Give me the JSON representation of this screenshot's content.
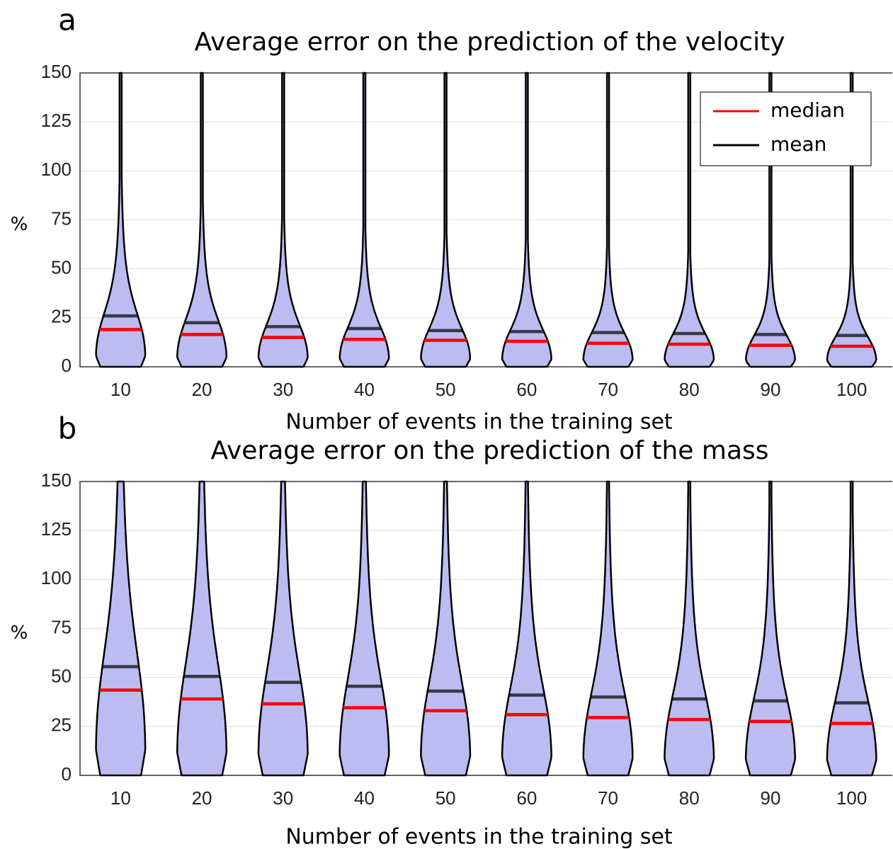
{
  "chart_data": [
    {
      "type": "violin",
      "panel_label": "a",
      "title": "Average error on the prediction of the velocity",
      "xlabel": "Number of events in the training set",
      "ylabel": "%",
      "x": [
        10,
        20,
        30,
        40,
        50,
        60,
        70,
        80,
        90,
        100
      ],
      "xlim": [
        5,
        105
      ],
      "xticks": [
        10,
        20,
        30,
        40,
        50,
        60,
        70,
        80,
        90,
        100
      ],
      "ylim": [
        0,
        150
      ],
      "yticks": [
        0,
        25,
        50,
        75,
        100,
        125,
        150
      ],
      "grid": true,
      "violin_color": "#bcbcf2",
      "legend": "upper right",
      "series": [
        {
          "name": "median",
          "color": "#ff0000",
          "values": [
            19,
            16.5,
            15,
            14,
            13.5,
            13,
            12,
            11.5,
            11,
            10.5
          ]
        },
        {
          "name": "mean",
          "color": "#000000",
          "values": [
            26,
            22.5,
            20.5,
            19.5,
            18.5,
            18,
            17.5,
            17,
            16.5,
            16
          ]
        }
      ]
    },
    {
      "type": "violin",
      "panel_label": "b",
      "title": "Average error on the prediction of the mass",
      "xlabel": "Number of events in the training set",
      "ylabel": "%",
      "x": [
        10,
        20,
        30,
        40,
        50,
        60,
        70,
        80,
        90,
        100
      ],
      "xlim": [
        5,
        105
      ],
      "xticks": [
        10,
        20,
        30,
        40,
        50,
        60,
        70,
        80,
        90,
        100
      ],
      "ylim": [
        0,
        150
      ],
      "yticks": [
        0,
        25,
        50,
        75,
        100,
        125,
        150
      ],
      "grid": true,
      "violin_color": "#bcbcf2",
      "series": [
        {
          "color": "#ff0000",
          "values": [
            43.5,
            39,
            36.5,
            34.5,
            33,
            31,
            29.5,
            28.5,
            27.5,
            26.5
          ]
        },
        {
          "color": "#000000",
          "values": [
            55.5,
            50.5,
            47.5,
            45.5,
            43,
            41,
            40,
            39,
            38,
            37
          ]
        }
      ]
    }
  ]
}
